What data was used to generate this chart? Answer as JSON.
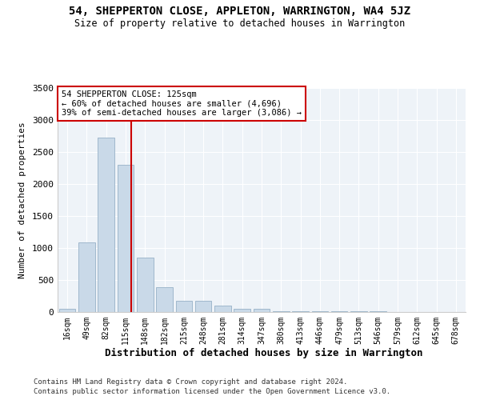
{
  "title": "54, SHEPPERTON CLOSE, APPLETON, WARRINGTON, WA4 5JZ",
  "subtitle": "Size of property relative to detached houses in Warrington",
  "xlabel": "Distribution of detached houses by size in Warrington",
  "ylabel": "Number of detached properties",
  "bar_labels": [
    "16sqm",
    "49sqm",
    "82sqm",
    "115sqm",
    "148sqm",
    "182sqm",
    "215sqm",
    "248sqm",
    "281sqm",
    "314sqm",
    "347sqm",
    "380sqm",
    "413sqm",
    "446sqm",
    "479sqm",
    "513sqm",
    "546sqm",
    "579sqm",
    "612sqm",
    "645sqm",
    "678sqm"
  ],
  "bar_values": [
    50,
    1090,
    2720,
    2300,
    850,
    390,
    175,
    175,
    105,
    50,
    50,
    15,
    15,
    15,
    8,
    8,
    8,
    4,
    4,
    3,
    3
  ],
  "bar_color": "#c9d9e8",
  "bar_edgecolor": "#a0b8cc",
  "vline_color": "#cc0000",
  "annotation_line1": "54 SHEPPERTON CLOSE: 125sqm",
  "annotation_line2": "← 60% of detached houses are smaller (4,696)",
  "annotation_line3": "39% of semi-detached houses are larger (3,086) →",
  "annotation_boxcolor": "#ffffff",
  "annotation_edgecolor": "#cc0000",
  "ylim": [
    0,
    3500
  ],
  "yticks": [
    0,
    500,
    1000,
    1500,
    2000,
    2500,
    3000,
    3500
  ],
  "footer1": "Contains HM Land Registry data © Crown copyright and database right 2024.",
  "footer2": "Contains public sector information licensed under the Open Government Licence v3.0.",
  "bg_color": "#ffffff",
  "plot_bg_color": "#eef3f8"
}
